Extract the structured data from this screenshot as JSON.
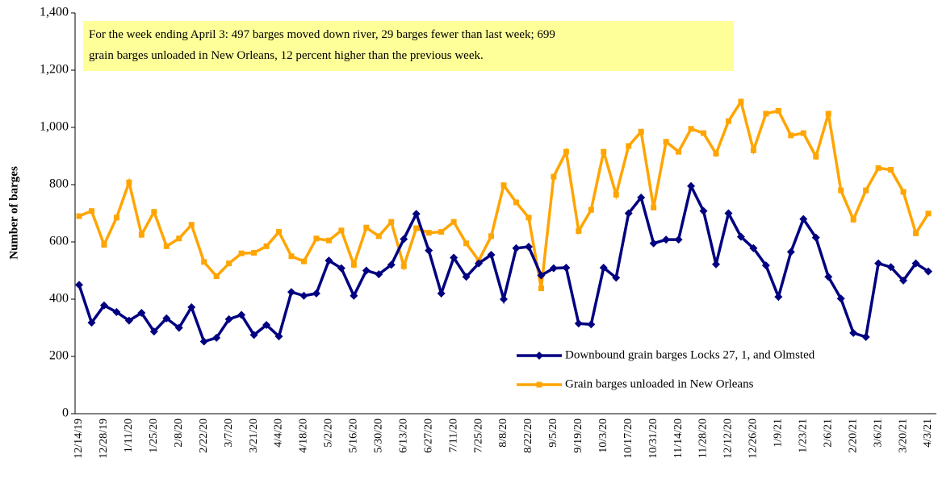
{
  "chart_data": {
    "type": "line",
    "annotation": [
      "For the week ending April 3: 497 barges moved down river, 29 barges fewer than last week; 699",
      "grain barges unloaded in New Orleans, 12 percent higher than the previous week."
    ],
    "y_label": "Number of barges",
    "categories": [
      "12/14/19",
      null,
      "12/28/19",
      null,
      "1/11/20",
      null,
      "1/25/20",
      null,
      "2/8/20",
      null,
      "2/22/20",
      null,
      "3/7/20",
      null,
      "3/21/20",
      null,
      "4/4/20",
      null,
      "4/18/20",
      null,
      "5/2/20",
      null,
      "5/16/20",
      null,
      "5/30/20",
      null,
      "6/13/20",
      null,
      "6/27/20",
      null,
      "7/11/20",
      null,
      "7/25/20",
      null,
      "8/8/20",
      null,
      "8/22/20",
      null,
      "9/5/20",
      null,
      "9/19/20",
      null,
      "10/3/20",
      null,
      "10/17/20",
      null,
      "10/31/20",
      null,
      "11/14/20",
      null,
      "11/28/20",
      null,
      "12/12/20",
      null,
      "12/26/20",
      null,
      "1/9/21",
      null,
      "1/23/21",
      null,
      "2/6/21",
      null,
      "2/20/21",
      null,
      "3/6/21",
      null,
      "3/20/21",
      null,
      "4/3/21"
    ],
    "series": [
      {
        "name": "Downbound grain barges Locks 27, 1, and Olmsted",
        "color": "#000080",
        "marker": "diamond",
        "values": [
          450,
          318,
          378,
          355,
          325,
          352,
          287,
          333,
          300,
          372,
          252,
          265,
          330,
          345,
          275,
          310,
          270,
          425,
          412,
          420,
          535,
          508,
          412,
          500,
          487,
          520,
          610,
          698,
          570,
          420,
          545,
          478,
          525,
          555,
          400,
          578,
          583,
          483,
          508,
          510,
          315,
          312,
          510,
          475,
          700,
          755,
          595,
          608,
          608,
          795,
          708,
          522,
          700,
          618,
          578,
          518,
          408,
          565,
          680,
          615,
          478,
          402,
          282,
          268,
          525,
          512,
          465,
          525,
          497
        ]
      },
      {
        "name": "Grain barges unloaded in New Orleans",
        "color": "#ffa500",
        "marker": "square",
        "values": [
          690,
          708,
          590,
          685,
          808,
          625,
          705,
          585,
          612,
          660,
          530,
          480,
          525,
          560,
          562,
          585,
          635,
          550,
          532,
          612,
          605,
          640,
          520,
          650,
          620,
          670,
          515,
          648,
          632,
          635,
          670,
          595,
          535,
          620,
          798,
          738,
          685,
          438,
          828,
          915,
          638,
          712,
          915,
          765,
          935,
          985,
          720,
          950,
          915,
          995,
          980,
          908,
          1022,
          1090,
          920,
          1048,
          1058,
          972,
          980,
          898,
          1048,
          780,
          678,
          780,
          858,
          852,
          775,
          630,
          699
        ]
      }
    ],
    "ylim": [
      0,
      1400
    ],
    "yticks": [
      0,
      200,
      400,
      600,
      800,
      {
        "value": 1000,
        "label": "1,000"
      },
      {
        "value": 1200,
        "label": "1,200"
      },
      {
        "value": 1400,
        "label": "1,400"
      }
    ],
    "grid": false,
    "legend": "lower right"
  }
}
